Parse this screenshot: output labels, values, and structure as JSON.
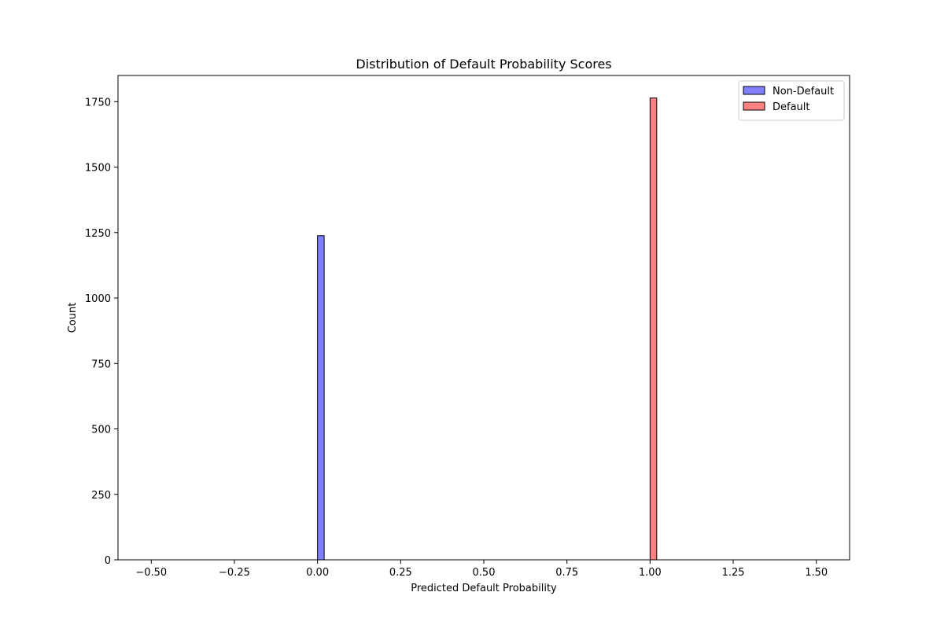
{
  "chart_data": {
    "type": "bar",
    "title": "Distribution of Default Probability Scores",
    "xlabel": "Predicted Default Probability",
    "ylabel": "Count",
    "xlim": [
      -0.6,
      1.6
    ],
    "ylim": [
      0,
      1850
    ],
    "x_ticks": [
      -0.5,
      -0.25,
      0.0,
      0.25,
      0.5,
      0.75,
      1.0,
      1.25,
      1.5
    ],
    "x_tick_labels": [
      "−0.50",
      "−0.25",
      "0.00",
      "0.25",
      "0.50",
      "0.75",
      "1.00",
      "1.25",
      "1.50"
    ],
    "y_ticks": [
      0,
      250,
      500,
      750,
      1000,
      1250,
      1500,
      1750
    ],
    "y_tick_labels": [
      "0",
      "250",
      "500",
      "750",
      "1000",
      "1250",
      "1500",
      "1750"
    ],
    "grid": false,
    "legend_position": "top-right",
    "series": [
      {
        "name": "Non-Default",
        "color": "#8080ff",
        "edge_color": "#000000",
        "bars": [
          {
            "x_start": 0.0,
            "x_end": 0.02,
            "value": 1238
          }
        ],
        "baseline_range": [
          -0.5,
          0.5
        ]
      },
      {
        "name": "Default",
        "color": "#ff8080",
        "edge_color": "#000000",
        "bars": [
          {
            "x_start": 1.0,
            "x_end": 1.02,
            "value": 1764
          }
        ],
        "baseline_range": [
          0.5,
          1.5
        ]
      }
    ]
  }
}
